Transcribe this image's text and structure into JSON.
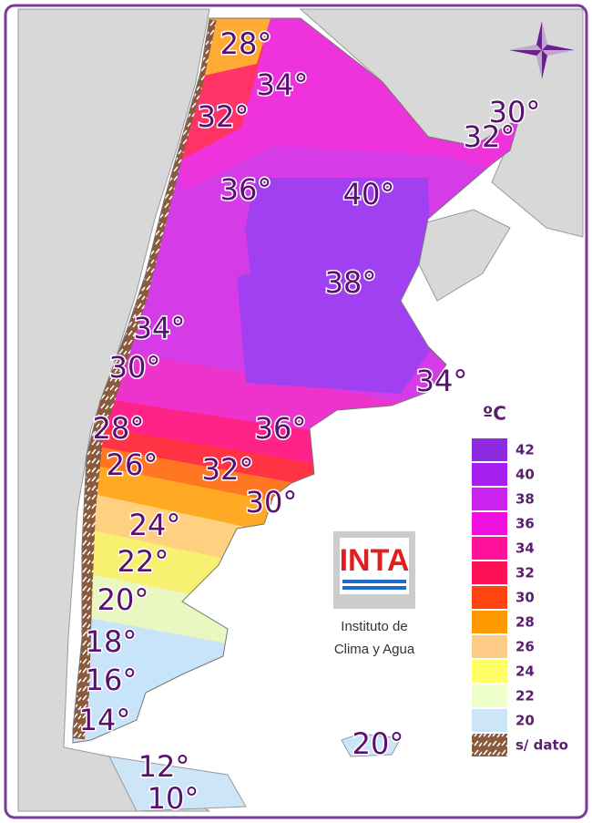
{
  "isotherm_labels": [
    "28°",
    "34°",
    "32°",
    "30°",
    "32°",
    "36°",
    "40°",
    "38°",
    "34°",
    "30°",
    "34°",
    "36°",
    "28°",
    "26°",
    "32°",
    "30°",
    "24°",
    "22°",
    "20°",
    "18°",
    "16°",
    "14°",
    "20°",
    "12°",
    "10°"
  ],
  "legend": {
    "title": "ºC",
    "items": [
      {
        "value": 42,
        "color": "#8e2ae0"
      },
      {
        "value": 40,
        "color": "#a61ff0"
      },
      {
        "value": 38,
        "color": "#cc22ee"
      },
      {
        "value": 36,
        "color": "#ee11dd"
      },
      {
        "value": 34,
        "color": "#ff1199"
      },
      {
        "value": 32,
        "color": "#ff1155"
      },
      {
        "value": 30,
        "color": "#ff4411"
      },
      {
        "value": 28,
        "color": "#ff9900"
      },
      {
        "value": 26,
        "color": "#ffcc88"
      },
      {
        "value": 24,
        "color": "#ffff66"
      },
      {
        "value": 22,
        "color": "#eeffcc"
      },
      {
        "value": 20,
        "color": "#cce6f8"
      }
    ],
    "no_data": "s/ dato"
  },
  "logo": {
    "text": "INTA",
    "caption": [
      "Instituto de",
      "Clima y Agua"
    ]
  }
}
